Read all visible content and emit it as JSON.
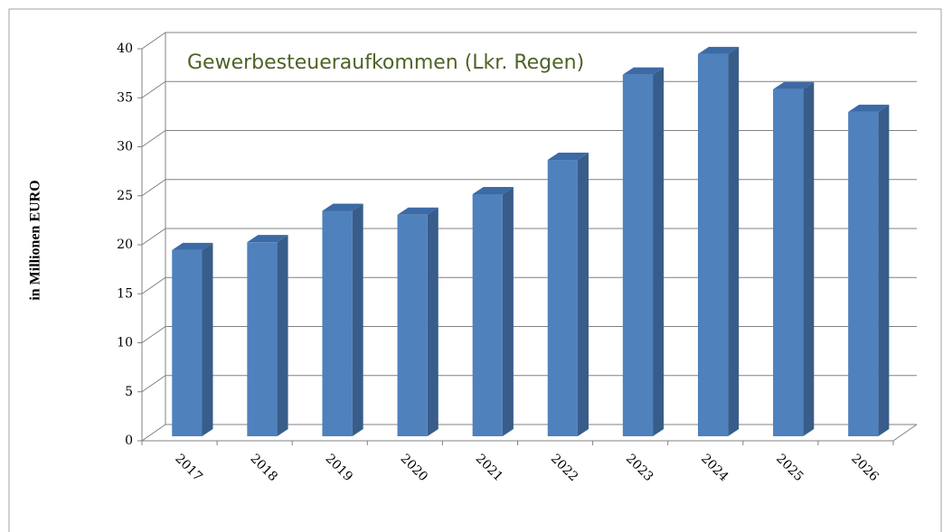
{
  "chart_data": {
    "type": "bar3d",
    "title": "Gewerbesteueraufkommen (Lkr. Regen)",
    "y_label": "in Millionen EURO",
    "categories": [
      "2017",
      "2018",
      "2019",
      "2020",
      "2021",
      "2022",
      "2023",
      "2024",
      "2025",
      "2026"
    ],
    "values": [
      19,
      19.8,
      23,
      22.6,
      24.7,
      28.2,
      36.9,
      39,
      35.4,
      33.1
    ],
    "color": "#4f81bd",
    "ylim": [
      0,
      40
    ],
    "yticks": [
      0,
      5,
      10,
      15,
      20,
      25,
      30,
      35,
      40
    ],
    "grid": true
  }
}
